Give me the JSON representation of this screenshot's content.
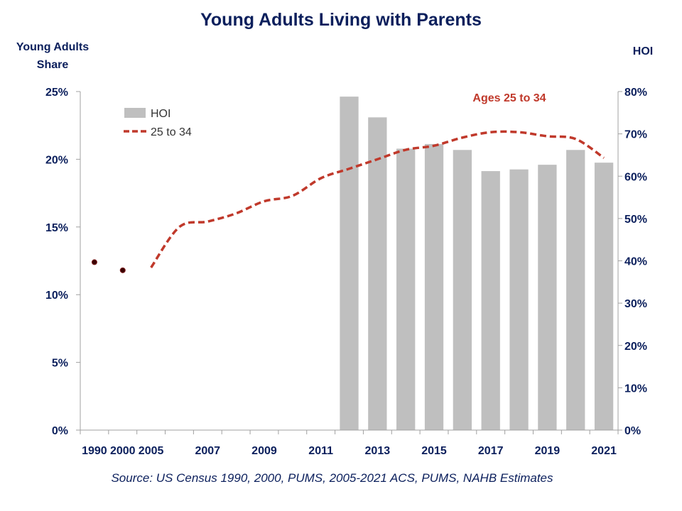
{
  "title": "Young Adults Living with Parents",
  "ylabel_left": "Young Adults Share",
  "ylabel_right": "HOI",
  "source": "Source: US Census 1990, 2000, PUMS, 2005-2021 ACS, PUMS, NAHB Estimates",
  "colors": {
    "bar": "#bfbfbf",
    "line": "#c0392b",
    "text": "#0b1f5c",
    "axis": "#a0a0a0"
  },
  "chart_data": {
    "type": "bar",
    "title": "Young Adults Living with Parents",
    "ylabel": "Young Adults Share",
    "ylabel_right": "HOI",
    "ylim": [
      0,
      25
    ],
    "ylim_right": [
      0,
      80
    ],
    "y_ticks": [
      "0%",
      "5%",
      "10%",
      "15%",
      "20%",
      "25%"
    ],
    "y_ticks_right": [
      "0%",
      "10%",
      "20%",
      "30%",
      "40%",
      "50%",
      "60%",
      "70%",
      "80%"
    ],
    "categories": [
      "1990",
      "2000",
      "2005",
      "2006",
      "2007",
      "2008",
      "2009",
      "2010",
      "2011",
      "2012",
      "2013",
      "2014",
      "2015",
      "2016",
      "2017",
      "2018",
      "2019",
      "2020",
      "2021"
    ],
    "x_tick_labels": [
      "1990",
      "2000",
      "2005",
      "",
      "2007",
      "",
      "2009",
      "",
      "2011",
      "",
      "2013",
      "",
      "2015",
      "",
      "2017",
      "",
      "2019",
      "",
      "2021"
    ],
    "series": [
      {
        "name": "HOI",
        "kind": "bar",
        "axis": "right",
        "values": [
          null,
          null,
          null,
          null,
          null,
          null,
          null,
          null,
          null,
          78.8,
          73.9,
          66.5,
          67.6,
          66.2,
          61.2,
          61.6,
          62.7,
          66.2,
          63.2
        ]
      },
      {
        "name": "25 to 34",
        "kind": "line",
        "axis": "left",
        "style": "dashed",
        "values": [
          12.4,
          11.8,
          12.0,
          15.0,
          15.4,
          16.0,
          16.9,
          17.3,
          18.6,
          19.3,
          20.0,
          20.7,
          21.0,
          21.6,
          22.0,
          22.0,
          21.7,
          21.5,
          20.1
        ]
      }
    ],
    "legend": {
      "position": "top-left",
      "items": [
        "HOI",
        "25 to 34"
      ]
    },
    "annotation": "Ages 25 to 34",
    "grid": false
  }
}
